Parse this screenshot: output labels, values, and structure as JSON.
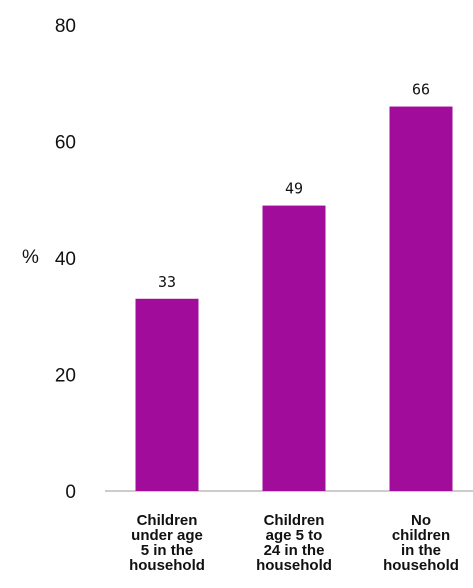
{
  "chart_data": {
    "type": "bar",
    "unit_label": "%",
    "categories": [
      [
        "Children",
        "under age",
        "5 in the",
        "household"
      ],
      [
        "Children",
        "age 5 to",
        "24 in the",
        "household"
      ],
      [
        "No",
        "children",
        "in the",
        "household"
      ]
    ],
    "values": [
      33,
      49,
      66
    ],
    "data_labels": [
      "33",
      "49",
      "66"
    ],
    "yticks": [
      0,
      20,
      40,
      60,
      80
    ],
    "ylim": [
      0,
      80
    ],
    "grid": false,
    "colors": {
      "bar": "#A10C9A",
      "axis": "#999999",
      "text": "#111111"
    }
  }
}
